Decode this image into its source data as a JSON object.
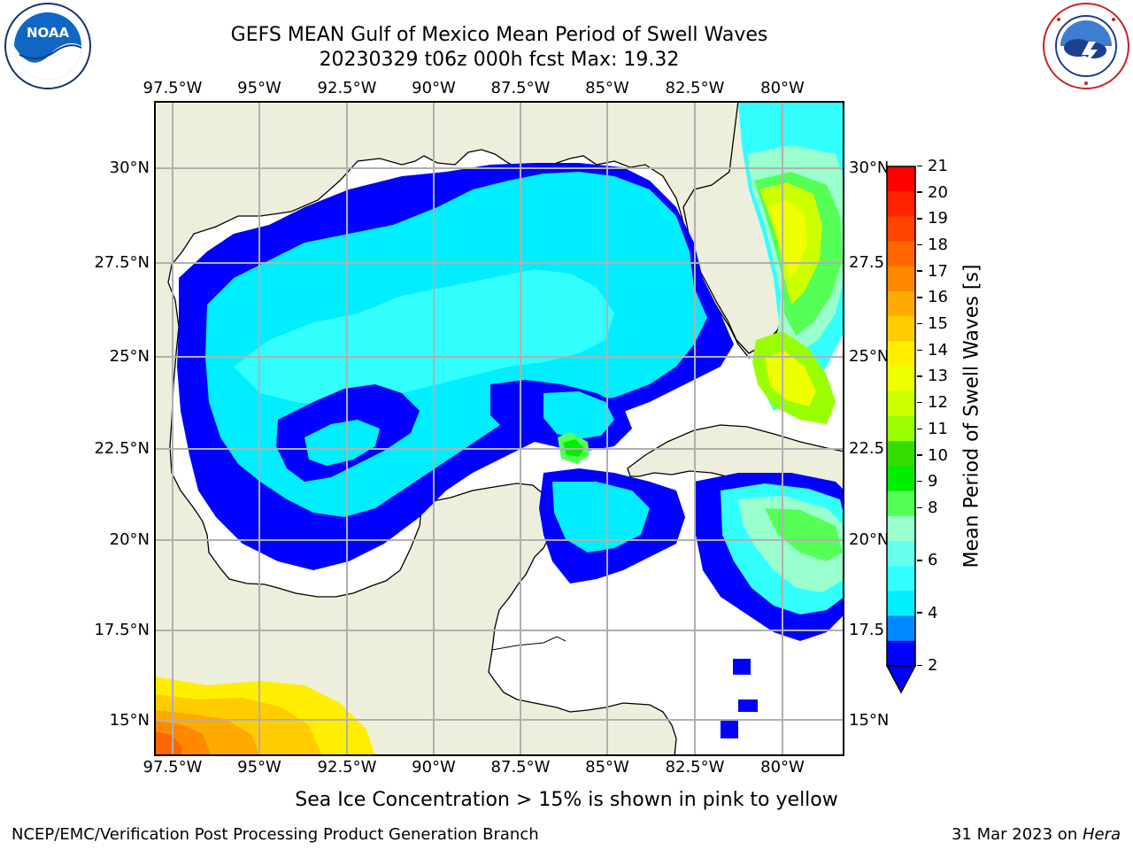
{
  "title": {
    "line1": "GEFS MEAN Gulf of Mexico Mean Period of Swell Waves",
    "line2": "20230329 t06z 000h fcst   Max: 19.32"
  },
  "logos": {
    "left": {
      "icon": "noaa-logo-icon",
      "text": "NOAA",
      "ring_text": "NATIONAL OCEANIC AND ATMOSPHERIC ADMINISTRATION · U.S. DEPARTMENT OF COMMERCE"
    },
    "right": {
      "icon": "nws-logo-icon",
      "ring_text": "NATIONAL WEATHER SERVICE"
    }
  },
  "map": {
    "lon_ticks": [
      "97.5°W",
      "95°W",
      "92.5°W",
      "90°W",
      "87.5°W",
      "85°W",
      "82.5°W",
      "80°W"
    ],
    "lat_ticks": [
      "30°N",
      "27.5°N",
      "25°N",
      "22.5°N",
      "20°N",
      "17.5°N",
      "15°N"
    ],
    "lat_ticks_right": [
      "30°N",
      "27.5",
      "25°N",
      "22.5",
      "20°N",
      "17.5",
      "15°N"
    ],
    "land_color": "#eeeedc",
    "ocean_color": "#ffffff",
    "grid_color": "#b0b0b0"
  },
  "colorbar": {
    "label": "Mean Period of Swell Waves [s]",
    "ticks": [
      "21",
      "20",
      "19",
      "18",
      "17",
      "16",
      "15",
      "14",
      "13",
      "12",
      "11",
      "10",
      "9",
      "8",
      "7",
      "6",
      "5",
      "4",
      "3",
      "2"
    ],
    "tick_labels": [
      "21",
      "20",
      "19",
      "18",
      "17",
      "16",
      "15",
      "14",
      "13",
      "12",
      "11",
      "10",
      "9",
      "8",
      "6",
      "4",
      "2"
    ],
    "colors_top_down": [
      "#ff0000",
      "#ff2200",
      "#ff4400",
      "#ff6600",
      "#ff8800",
      "#ffaa00",
      "#ffcc00",
      "#ffee00",
      "#eeff00",
      "#ccff00",
      "#99ff00",
      "#33dd00",
      "#00ee00",
      "#55ff55",
      "#99ffcc",
      "#66ffee",
      "#33ffff",
      "#00eeff",
      "#0088ff",
      "#0000ff"
    ],
    "extend_color": "#0000ff"
  },
  "caption": "Sea Ice Concentration > 15% is shown in pink to yellow",
  "footer": {
    "left": "NCEP/EMC/Verification Post Processing Product Generation Branch",
    "right_prefix": "31 Mar 2023 on ",
    "right_italic": "Hera"
  }
}
